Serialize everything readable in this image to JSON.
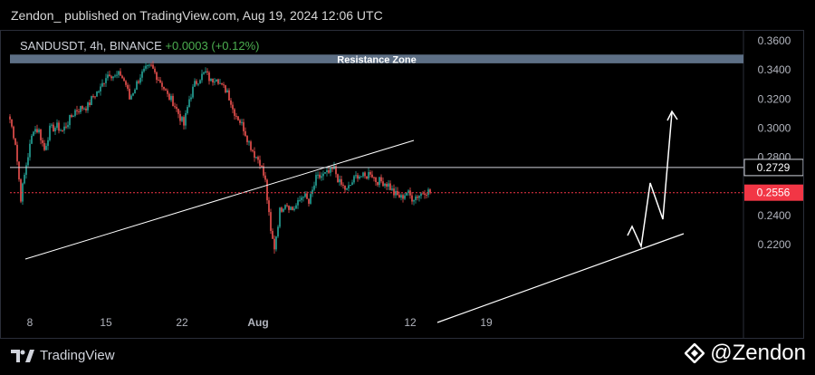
{
  "header": {
    "title": "Zendon_ published on TradingView.com, Aug 19, 2024 12:06 UTC"
  },
  "symbol": {
    "name": "SANDUSDT, 4h, BINANCE",
    "change": "+0.0003 (+0.12%)"
  },
  "footer": {
    "brand": "TradingView",
    "handle": "@Zendon"
  },
  "colors": {
    "up": "#26a69a",
    "down": "#ef5350",
    "bg": "#000000",
    "zone": "#5d6f85",
    "current": "#f23645"
  },
  "chart_data": {
    "type": "candlestick",
    "symbol": "SANDUSDT",
    "interval": "4h",
    "exchange": "BINANCE",
    "ylim": [
      0.2,
      0.36
    ],
    "y_ticks": [
      "0.3600",
      "0.3400",
      "0.3200",
      "0.3000",
      "0.2800",
      "0.2400",
      "0.2200"
    ],
    "x_ticks": [
      {
        "label": "8",
        "idx": 11
      },
      {
        "label": "15",
        "idx": 53
      },
      {
        "label": "22",
        "idx": 95
      },
      {
        "label": "Aug",
        "idx": 137
      },
      {
        "label": "12",
        "idx": 221
      },
      {
        "label": "19",
        "idx": 263
      }
    ],
    "close_path": [
      [
        0,
        0.306
      ],
      [
        3,
        0.29
      ],
      [
        6,
        0.252
      ],
      [
        9,
        0.275
      ],
      [
        13,
        0.3
      ],
      [
        16,
        0.298
      ],
      [
        19,
        0.285
      ],
      [
        22,
        0.299
      ],
      [
        26,
        0.301
      ],
      [
        29,
        0.298
      ],
      [
        33,
        0.306
      ],
      [
        36,
        0.312
      ],
      [
        40,
        0.314
      ],
      [
        43,
        0.315
      ],
      [
        46,
        0.322
      ],
      [
        50,
        0.327
      ],
      [
        53,
        0.336
      ],
      [
        55,
        0.338
      ],
      [
        58,
        0.335
      ],
      [
        61,
        0.337
      ],
      [
        64,
        0.33
      ],
      [
        66,
        0.32
      ],
      [
        69,
        0.328
      ],
      [
        72,
        0.336
      ],
      [
        75,
        0.34
      ],
      [
        78,
        0.342
      ],
      [
        81,
        0.336
      ],
      [
        84,
        0.33
      ],
      [
        87,
        0.322
      ],
      [
        90,
        0.318
      ],
      [
        93,
        0.31
      ],
      [
        96,
        0.302
      ],
      [
        99,
        0.32
      ],
      [
        102,
        0.33
      ],
      [
        105,
        0.335
      ],
      [
        108,
        0.338
      ],
      [
        111,
        0.332
      ],
      [
        114,
        0.336
      ],
      [
        117,
        0.328
      ],
      [
        120,
        0.326
      ],
      [
        123,
        0.313
      ],
      [
        126,
        0.307
      ],
      [
        129,
        0.3
      ],
      [
        132,
        0.29
      ],
      [
        135,
        0.282
      ],
      [
        138,
        0.277
      ],
      [
        141,
        0.263
      ],
      [
        144,
        0.228
      ],
      [
        146,
        0.218
      ],
      [
        149,
        0.243
      ],
      [
        152,
        0.249
      ],
      [
        156,
        0.244
      ],
      [
        159,
        0.248
      ],
      [
        162,
        0.255
      ],
      [
        165,
        0.248
      ],
      [
        169,
        0.265
      ],
      [
        172,
        0.267
      ],
      [
        176,
        0.269
      ],
      [
        179,
        0.272
      ],
      [
        182,
        0.262
      ],
      [
        186,
        0.257
      ],
      [
        189,
        0.263
      ],
      [
        192,
        0.268
      ],
      [
        196,
        0.266
      ],
      [
        199,
        0.27
      ],
      [
        202,
        0.264
      ],
      [
        206,
        0.263
      ],
      [
        209,
        0.261
      ],
      [
        212,
        0.255
      ],
      [
        216,
        0.252
      ],
      [
        219,
        0.256
      ],
      [
        222,
        0.252
      ],
      [
        226,
        0.254
      ],
      [
        229,
        0.257
      ],
      [
        232,
        0.256
      ]
    ],
    "current_price": "0.2556",
    "level_price": "0.2729",
    "annotations": [
      {
        "text": "Resistance Zone",
        "y0": 0.3445,
        "y1": 0.3505
      }
    ]
  }
}
